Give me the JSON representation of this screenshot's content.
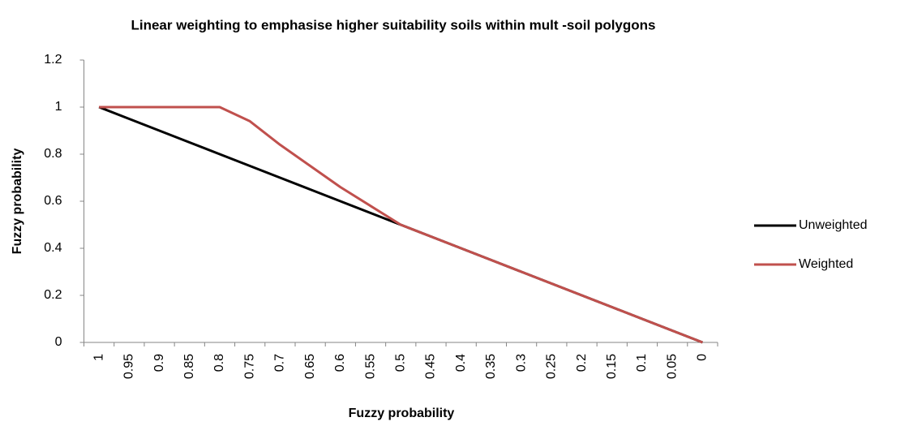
{
  "chart_data": {
    "type": "line",
    "title": "Linear weighting to emphasise higher suitability soils within mult -soil polygons",
    "x_label": "Fuzzy probability",
    "y_label": "Fuzzy probability",
    "categories": [
      "1",
      "0.95",
      "0.9",
      "0.85",
      "0.8",
      "0.75",
      "0.7",
      "0.65",
      "0.6",
      "0.55",
      "0.5",
      "0.45",
      "0.4",
      "0.35",
      "0.3",
      "0.25",
      "0.2",
      "0.15",
      "0.1",
      "0.05",
      "0"
    ],
    "series": [
      {
        "name": "Unweighted",
        "color": "#000000",
        "values": [
          1,
          0.95,
          0.9,
          0.85,
          0.8,
          0.75,
          0.7,
          0.65,
          0.6,
          0.55,
          0.5,
          0.45,
          0.4,
          0.35,
          0.3,
          0.25,
          0.2,
          0.15,
          0.1,
          0.05,
          0
        ]
      },
      {
        "name": "Weighted",
        "color": "#c0504d",
        "values": [
          1,
          1,
          1,
          1,
          1,
          0.94,
          0.84,
          0.75,
          0.66,
          0.58,
          0.5,
          0.45,
          0.4,
          0.35,
          0.3,
          0.25,
          0.2,
          0.15,
          0.1,
          0.05,
          0
        ]
      }
    ],
    "ylim": [
      0,
      1.2
    ],
    "yticks": [
      0,
      0.2,
      0.4,
      0.6,
      0.8,
      1,
      1.2
    ],
    "grid": false,
    "legend": "right"
  }
}
